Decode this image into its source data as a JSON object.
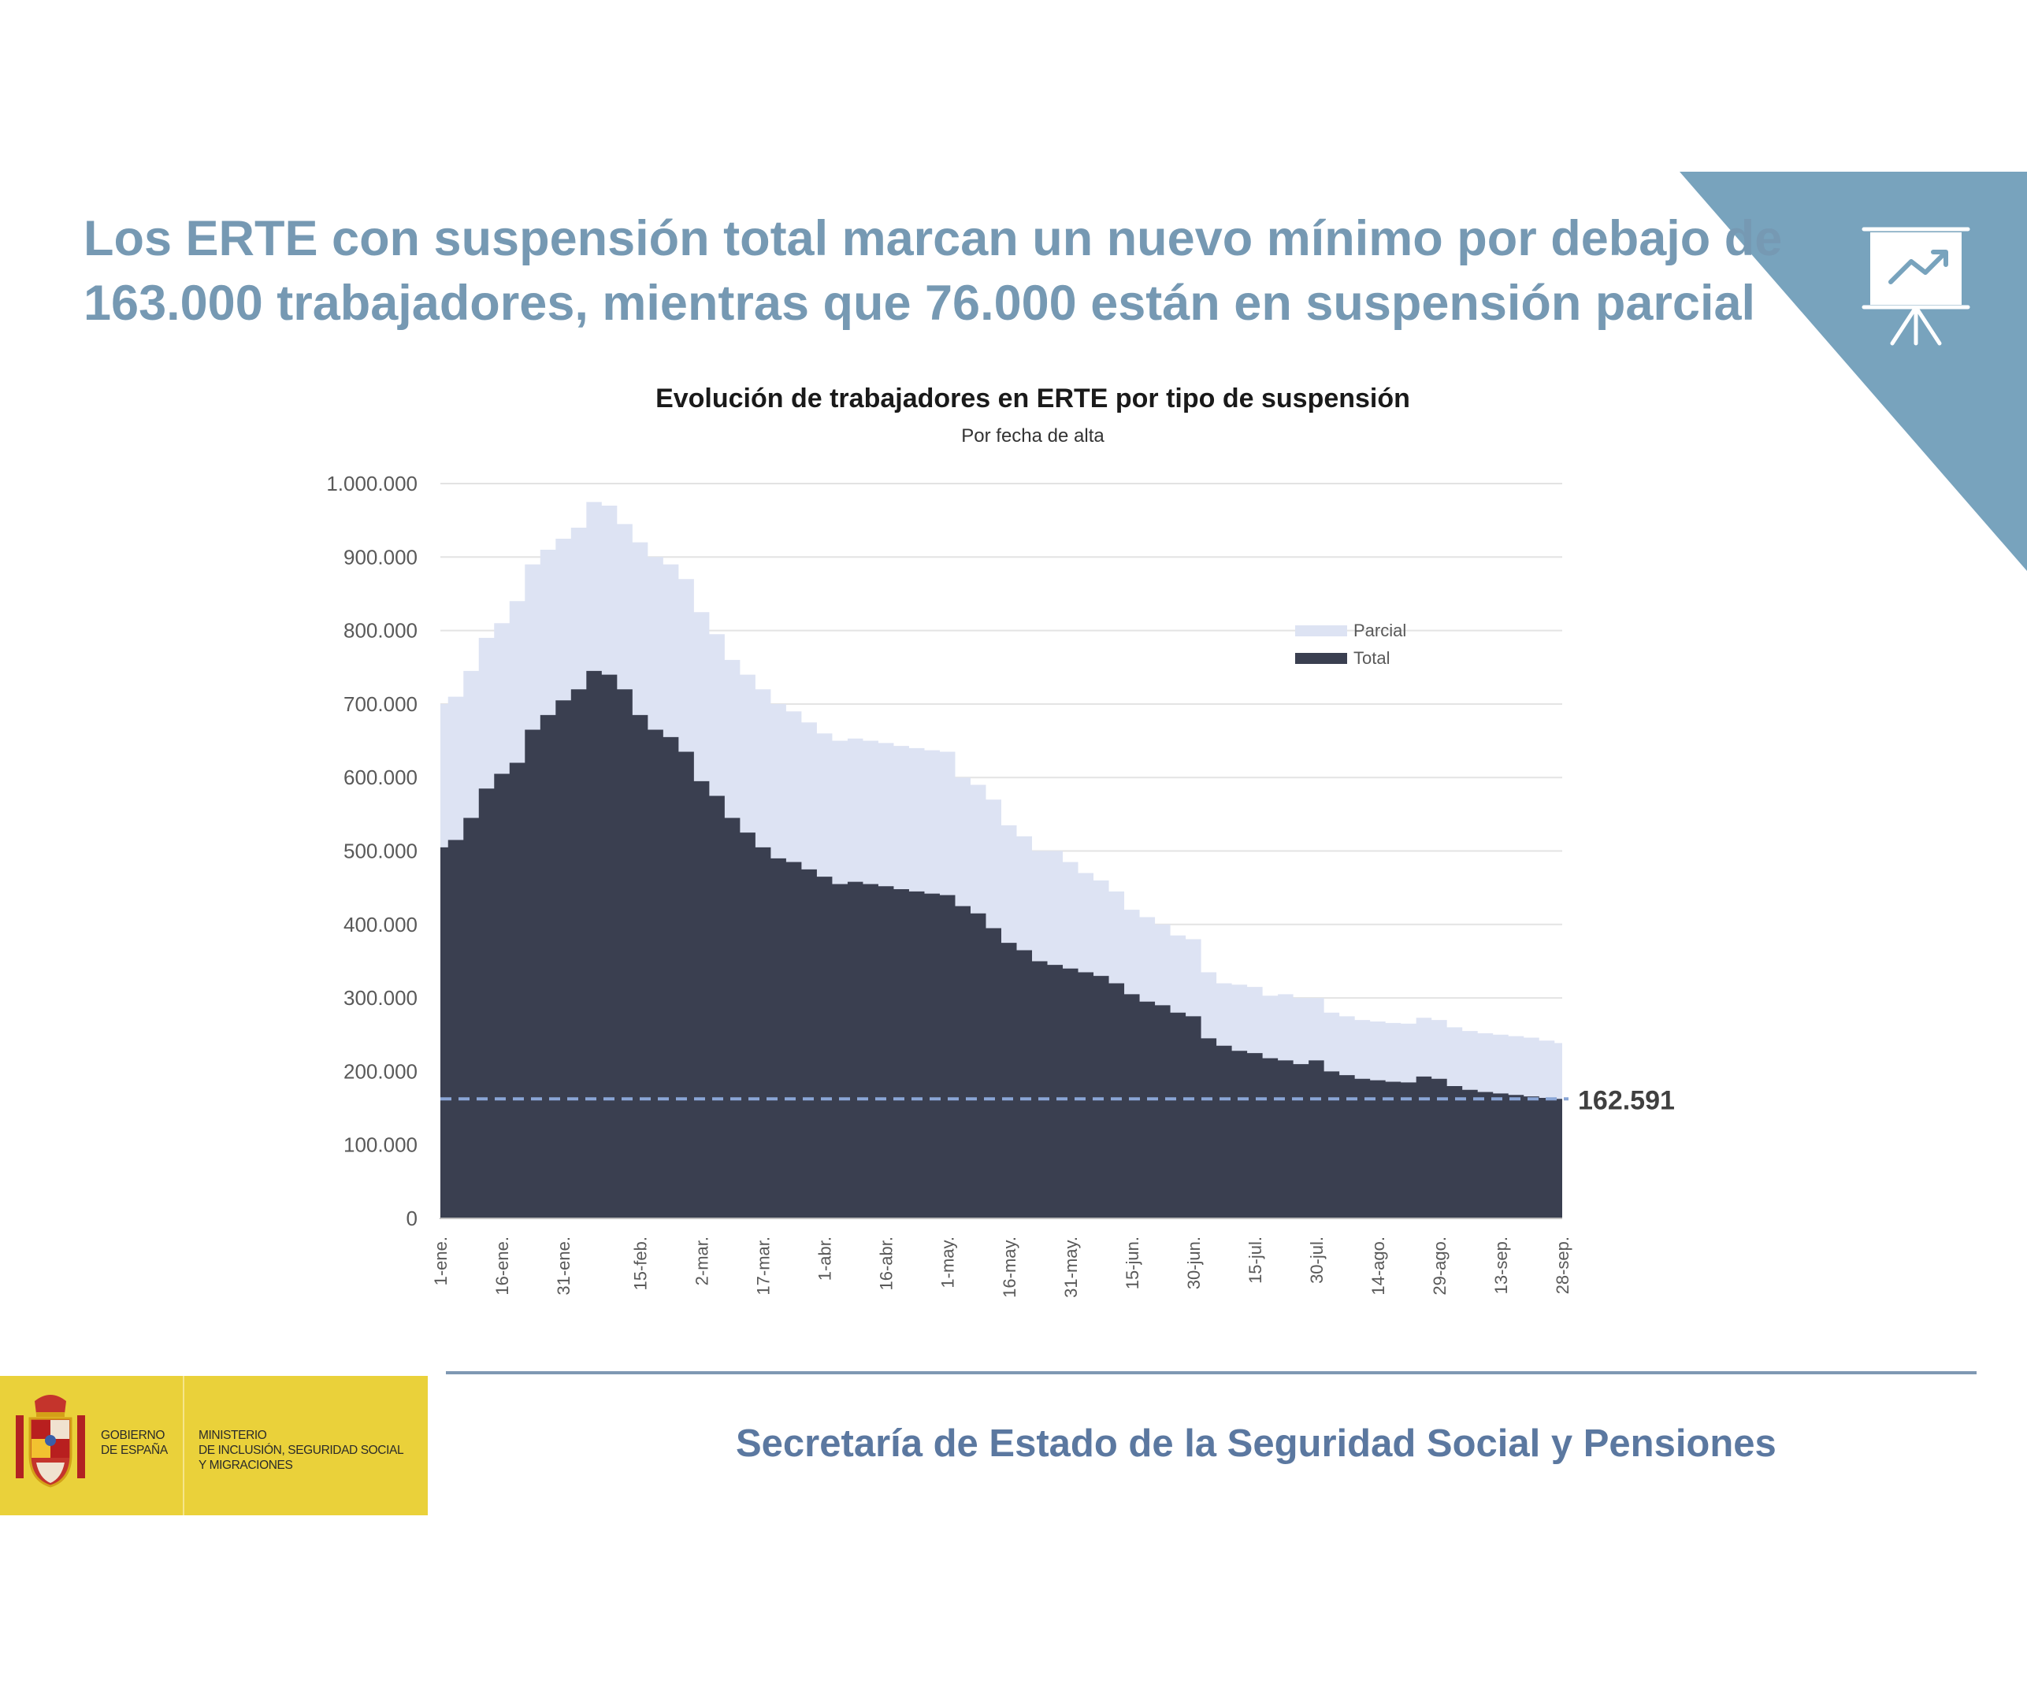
{
  "headline": {
    "line1": "Los ERTE con suspensión total marcan un nuevo mínimo por debajo de",
    "line2": "163.000 trabajadores, mientras que 76.000 están en suspensión parcial"
  },
  "corner_icon": "presentation-chart-icon",
  "colors": {
    "accent": "#78a3bd",
    "headline": "#7699b3",
    "parcial": "#dde3f3",
    "total": "#3a3f50",
    "reference": "#8aa6d6",
    "footer_text": "#5b78a0",
    "logo_bg": "#ead13a"
  },
  "chart_data": {
    "type": "area",
    "stacked": true,
    "title": "Evolución de trabajadores en ERTE por tipo de suspensión",
    "subtitle": "Por fecha de alta",
    "ylim": [
      0,
      1000000
    ],
    "y_ticks": [
      "0",
      "100.000",
      "200.000",
      "300.000",
      "400.000",
      "500.000",
      "600.000",
      "700.000",
      "800.000",
      "900.000",
      "1.000.000"
    ],
    "grid": true,
    "legend_position": "top-right",
    "x_ticks": [
      "1-ene.",
      "16-ene.",
      "31-ene.",
      "15-feb.",
      "2-mar.",
      "17-mar.",
      "1-abr.",
      "16-abr.",
      "1-may.",
      "16-may.",
      "31-may.",
      "15-jun.",
      "30-jun.",
      "15-jul.",
      "30-jul.",
      "14-ago.",
      "29-ago.",
      "13-sep.",
      "28-sep."
    ],
    "x": [
      "1-ene.",
      "4-ene.",
      "8-ene.",
      "12-ene.",
      "16-ene.",
      "20-ene.",
      "25-ene.",
      "28-ene.",
      "31-ene.",
      "3-feb.",
      "6-feb.",
      "9-feb.",
      "12-feb.",
      "15-feb.",
      "19-feb.",
      "23-feb.",
      "26-feb.",
      "2-mar.",
      "6-mar.",
      "10-mar.",
      "14-mar.",
      "17-mar.",
      "21-mar.",
      "25-mar.",
      "28-mar.",
      "1-abr.",
      "5-abr.",
      "9-abr.",
      "13-abr.",
      "16-abr.",
      "20-abr.",
      "24-abr.",
      "28-abr.",
      "1-may.",
      "5-may.",
      "9-may.",
      "13-may.",
      "16-may.",
      "20-may.",
      "24-may.",
      "28-may.",
      "31-may.",
      "4-jun.",
      "8-jun.",
      "12-jun.",
      "15-jun.",
      "19-jun.",
      "23-jun.",
      "27-jun.",
      "30-jun.",
      "4-jul.",
      "8-jul.",
      "12-jul.",
      "15-jul.",
      "19-jul.",
      "23-jul.",
      "27-jul.",
      "30-jul.",
      "3-ago.",
      "7-ago.",
      "11-ago.",
      "14-ago.",
      "18-ago.",
      "22-ago.",
      "26-ago.",
      "29-ago.",
      "2-sep.",
      "6-sep.",
      "10-sep.",
      "13-sep.",
      "17-sep.",
      "21-sep.",
      "25-sep.",
      "28-sep."
    ],
    "series": [
      {
        "name": "Total",
        "values": [
          505000,
          515000,
          545000,
          585000,
          605000,
          620000,
          665000,
          685000,
          705000,
          720000,
          745000,
          740000,
          720000,
          685000,
          665000,
          655000,
          635000,
          595000,
          575000,
          545000,
          525000,
          505000,
          490000,
          485000,
          475000,
          465000,
          455000,
          458000,
          455000,
          452000,
          448000,
          445000,
          442000,
          440000,
          425000,
          415000,
          395000,
          375000,
          365000,
          350000,
          345000,
          340000,
          335000,
          330000,
          320000,
          305000,
          295000,
          290000,
          280000,
          275000,
          245000,
          235000,
          228000,
          225000,
          218000,
          215000,
          210000,
          215000,
          200000,
          195000,
          190000,
          188000,
          186000,
          185000,
          193000,
          190000,
          180000,
          175000,
          172000,
          170000,
          168000,
          166000,
          164000,
          162591
        ]
      },
      {
        "name": "Parcial",
        "values": [
          195000,
          195000,
          200000,
          205000,
          205000,
          220000,
          225000,
          225000,
          220000,
          220000,
          230000,
          230000,
          225000,
          235000,
          235000,
          235000,
          235000,
          230000,
          220000,
          215000,
          215000,
          215000,
          210000,
          205000,
          200000,
          195000,
          195000,
          195000,
          195000,
          195000,
          195000,
          195000,
          195000,
          195000,
          175000,
          175000,
          175000,
          160000,
          155000,
          150000,
          155000,
          145000,
          135000,
          130000,
          125000,
          115000,
          115000,
          110000,
          105000,
          105000,
          90000,
          85000,
          90000,
          90000,
          85000,
          90000,
          90000,
          85000,
          80000,
          80000,
          80000,
          80000,
          80000,
          80000,
          80000,
          80000,
          80000,
          80000,
          80000,
          80000,
          80000,
          80000,
          78000,
          76000
        ]
      }
    ],
    "reference_line": {
      "value": 162591,
      "label": "162.591"
    }
  },
  "footer": {
    "title": "Secretaría de Estado de la Seguridad Social y Pensiones",
    "logo": {
      "gobierno_line1": "GOBIERNO",
      "gobierno_line2": "DE ESPAÑA",
      "ministerio_line1": "MINISTERIO",
      "ministerio_line2": "DE INCLUSIÓN, SEGURIDAD SOCIAL",
      "ministerio_line3": "Y MIGRACIONES",
      "emblem": "coat-of-arms-icon"
    }
  }
}
